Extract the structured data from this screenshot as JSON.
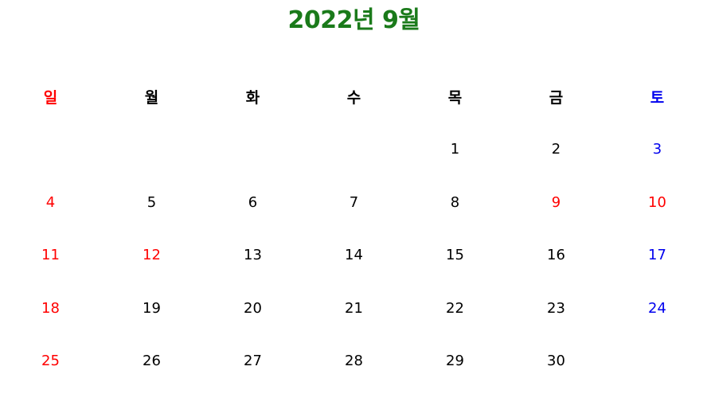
{
  "calendar": {
    "title": "2022년 9월",
    "colors": {
      "title": "#1a7a1a",
      "sunday": "#ff0000",
      "saturday": "#0000ee",
      "holiday": "#ff0000",
      "default": "#000000"
    },
    "weekdays": [
      "일",
      "월",
      "화",
      "수",
      "목",
      "금",
      "토"
    ],
    "weeks": [
      [
        "",
        "",
        "",
        "",
        "1",
        "2",
        "3"
      ],
      [
        "4",
        "5",
        "6",
        "7",
        "8",
        "9",
        "10"
      ],
      [
        "11",
        "12",
        "13",
        "14",
        "15",
        "16",
        "17"
      ],
      [
        "18",
        "19",
        "20",
        "21",
        "22",
        "23",
        "24"
      ],
      [
        "25",
        "26",
        "27",
        "28",
        "29",
        "30",
        ""
      ]
    ],
    "holidays": [
      "9",
      "10",
      "12"
    ]
  }
}
